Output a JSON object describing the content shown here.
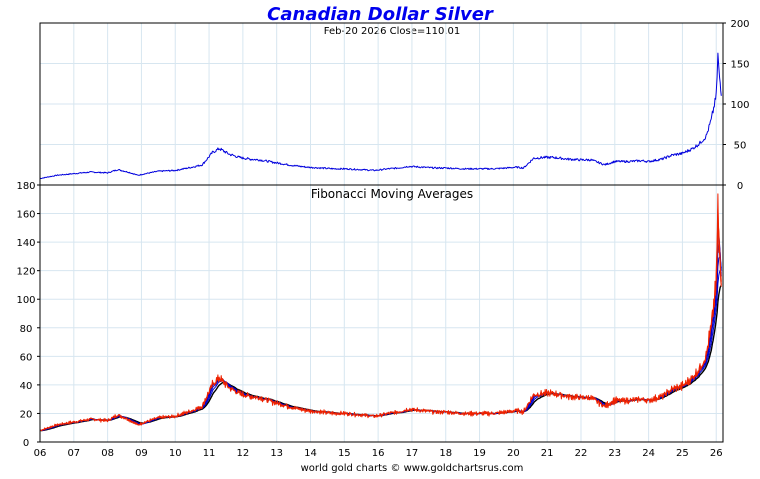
{
  "header": {
    "title": "Canadian Dollar Silver",
    "subtitle": "Feb-20  2026   Close=110.01",
    "footer": "world gold charts © www.goldchartsrus.com"
  },
  "colors": {
    "price_line": "#0000dd",
    "fast_ma": "#ee2200",
    "mid_ma": "#0000cc",
    "slow_ma": "#000000",
    "grid": "#d7e6f0"
  },
  "chart_data": [
    {
      "type": "line",
      "panel": "top",
      "title": "",
      "ylim": [
        0,
        200
      ],
      "yticks": [
        "200",
        "150",
        "100",
        "50",
        "0"
      ],
      "ytick_values": [
        200,
        150,
        100,
        50,
        0
      ],
      "xlim": [
        2006.0,
        2026.2
      ],
      "series": [
        {
          "x": [
            2006.0,
            2006.5,
            2007.0,
            2007.5,
            2008.0,
            2008.3,
            2008.6,
            2008.9,
            2009.0,
            2009.5,
            2010.0,
            2010.5,
            2010.8,
            2011.1,
            2011.3,
            2011.6,
            2011.9,
            2012.2,
            2012.5,
            2012.9,
            2013.2,
            2013.5,
            2013.9,
            2014.3,
            2014.7,
            2015.0,
            2015.5,
            2015.9,
            2016.3,
            2016.6,
            2016.9,
            2017.3,
            2017.7,
            2018.0,
            2018.5,
            2019.0,
            2019.4,
            2019.8,
            2020.1,
            2020.3,
            2020.6,
            2020.9,
            2021.2,
            2021.6,
            2022.0,
            2022.3,
            2022.7,
            2023.0,
            2023.4,
            2023.8,
            2024.0,
            2024.4,
            2024.7,
            2025.0,
            2025.3,
            2025.5,
            2025.7,
            2025.85,
            2026.0,
            2026.05,
            2026.1,
            2026.15
          ],
          "y": [
            8,
            12,
            14,
            16,
            15,
            19,
            16,
            12,
            13,
            17,
            18,
            22,
            25,
            40,
            45,
            38,
            34,
            32,
            31,
            28,
            26,
            24,
            22,
            21,
            20,
            20,
            19,
            18,
            20,
            21,
            23,
            22,
            21,
            21,
            20,
            20,
            20,
            21,
            22,
            21,
            33,
            34,
            34,
            32,
            31,
            31,
            25,
            29,
            29,
            30,
            29,
            32,
            37,
            39,
            45,
            51,
            60,
            80,
            110,
            160,
            130,
            110
          ]
        }
      ]
    },
    {
      "type": "line",
      "panel": "bottom",
      "title": "Fibonacci Moving Averages",
      "ylim": [
        0,
        180
      ],
      "yticks": [
        "180",
        "160",
        "140",
        "120",
        "100",
        "80",
        "60",
        "40",
        "20",
        "0"
      ],
      "ytick_values": [
        180,
        160,
        140,
        120,
        100,
        80,
        60,
        40,
        20,
        0
      ],
      "xlim": [
        2006.0,
        2026.2
      ],
      "categories": [
        "06",
        "07",
        "08",
        "09",
        "10",
        "11",
        "12",
        "13",
        "14",
        "15",
        "16",
        "17",
        "18",
        "19",
        "20",
        "21",
        "22",
        "23",
        "24",
        "25",
        "26"
      ],
      "category_positions": [
        2006,
        2007,
        2008,
        2009,
        2010,
        2011,
        2012,
        2013,
        2014,
        2015,
        2016,
        2017,
        2018,
        2019,
        2020,
        2021,
        2022,
        2023,
        2024,
        2025,
        2026
      ],
      "series": [
        {
          "x": [
            2006.0,
            2006.5,
            2007.0,
            2007.5,
            2008.0,
            2008.3,
            2008.6,
            2008.9,
            2009.0,
            2009.5,
            2010.0,
            2010.5,
            2010.8,
            2011.1,
            2011.3,
            2011.6,
            2011.9,
            2012.2,
            2012.5,
            2012.9,
            2013.2,
            2013.5,
            2013.9,
            2014.3,
            2014.7,
            2015.0,
            2015.5,
            2015.9,
            2016.3,
            2016.6,
            2016.9,
            2017.3,
            2017.7,
            2018.0,
            2018.5,
            2019.0,
            2019.4,
            2019.8,
            2020.1,
            2020.3,
            2020.6,
            2020.9,
            2021.2,
            2021.6,
            2022.0,
            2022.3,
            2022.7,
            2023.0,
            2023.4,
            2023.8,
            2024.0,
            2024.4,
            2024.7,
            2025.0,
            2025.3,
            2025.5,
            2025.7,
            2025.85,
            2026.0,
            2026.05,
            2026.1,
            2026.15
          ],
          "y": [
            8,
            12,
            14,
            16,
            15,
            19,
            16,
            12,
            13,
            17,
            18,
            22,
            25,
            40,
            45,
            38,
            34,
            32,
            31,
            28,
            26,
            24,
            22,
            21,
            20,
            20,
            19,
            18,
            20,
            21,
            23,
            22,
            21,
            21,
            20,
            20,
            20,
            21,
            22,
            21,
            33,
            34,
            34,
            32,
            31,
            31,
            25,
            29,
            29,
            30,
            29,
            32,
            37,
            39,
            45,
            51,
            60,
            80,
            110,
            160,
            130,
            110
          ]
        }
      ]
    }
  ]
}
